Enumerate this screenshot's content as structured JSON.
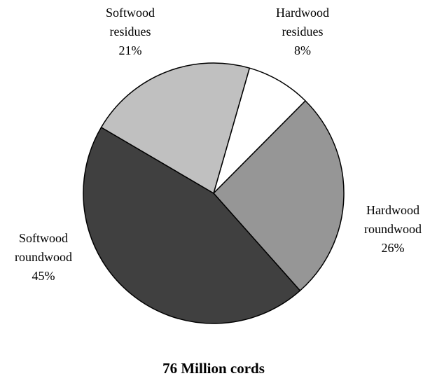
{
  "chart_data": {
    "type": "pie",
    "title": "76 Million cords",
    "start_angle_deg": 0,
    "direction": "clockwise",
    "slices": [
      {
        "name": "Hardwood residues",
        "label_lines": [
          "Hardwood",
          "residues"
        ],
        "pct_label": "8%",
        "value": 8,
        "color": "#ffffff"
      },
      {
        "name": "Hardwood roundwood",
        "label_lines": [
          "Hardwood",
          "roundwood"
        ],
        "pct_label": "26%",
        "value": 26,
        "color": "#969696"
      },
      {
        "name": "Softwood roundwood",
        "label_lines": [
          "Softwood",
          "roundwood"
        ],
        "pct_label": "45%",
        "value": 45,
        "color": "#404040"
      },
      {
        "name": "Softwood residues",
        "label_lines": [
          "Softwood",
          "residues"
        ],
        "pct_label": "21%",
        "value": 21,
        "color": "#c0c0c0"
      }
    ]
  }
}
